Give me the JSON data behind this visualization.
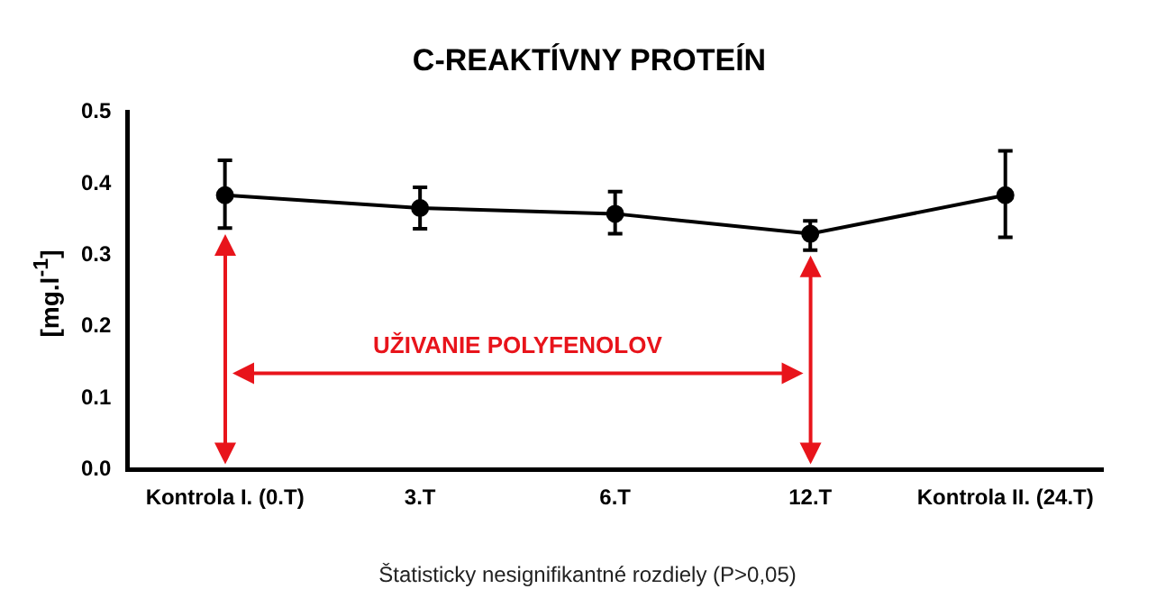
{
  "chart_data": {
    "type": "line",
    "title": "C-REAKTÍVNY PROTEÍN",
    "ylabel": "[mg.l$^{-1}$]",
    "categories": [
      "Kontrola I. (0.T)",
      "3.T",
      "6.T",
      "12.T",
      "Kontrola II. (24.T)"
    ],
    "series": [
      {
        "color": "#000000",
        "values": [
          0.384,
          0.366,
          0.358,
          0.33,
          0.384
        ],
        "errors": [
          [
            0.338,
            0.433
          ],
          [
            0.337,
            0.395
          ],
          [
            0.33,
            0.389
          ],
          [
            0.307,
            0.348
          ],
          [
            0.325,
            0.446
          ]
        ]
      }
    ],
    "ylim": [
      0,
      0.5
    ],
    "yticks": [
      {
        "value": 0,
        "label": "0.0"
      },
      {
        "value": 0.1,
        "label": "0.1"
      },
      {
        "value": 0.2,
        "label": "0.2"
      },
      {
        "value": 0.3,
        "label": "0.3"
      },
      {
        "value": 0.4,
        "label": "0.4"
      },
      {
        "value": 0.5,
        "label": "0.5"
      }
    ],
    "annotations": [
      "UŽIVANIE POLYFENOLOV",
      "Štatisticky nesignifikantné rozdiely (P>0,05)"
    ],
    "grid": false,
    "legend": false,
    "marker": "circle",
    "line_style": "solid"
  }
}
